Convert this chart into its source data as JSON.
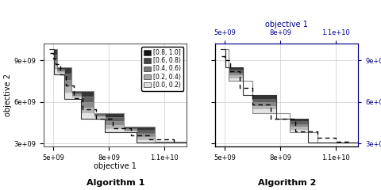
{
  "xlabel": "objective 1",
  "ylabel": "objective 2",
  "xlim": [
    4500000000.0,
    12200000000.0
  ],
  "ylim": [
    2800000000.0,
    10200000000.0
  ],
  "xticks": [
    5000000000.0,
    8000000000.0,
    11000000000.0
  ],
  "yticks": [
    3000000000.0,
    6000000000.0,
    9000000000.0
  ],
  "xtick_labels": [
    "5e+09",
    "8e+09",
    "1.1e+10"
  ],
  "ytick_labels": [
    "3e+09",
    "6e+09",
    "9e+09"
  ],
  "legend_labels": [
    "[0.8, 1.0]",
    "[0.6, 0.8)",
    "[0.4, 0.6)",
    "[0.2, 0.4)",
    "[0.0, 0.2)"
  ],
  "legend_colors": [
    "#111111",
    "#444444",
    "#777777",
    "#aaaaaa",
    "#e0e0e0"
  ],
  "alg1_label": "Algorithm 1",
  "alg2_label": "Algorithm 2",
  "axis_label_color": "#00008B",
  "background_color": "#ffffff",
  "grid_color": "#cccccc",
  "outer_line_color": "#888888",
  "inner_line_color": "#333333",
  "median_line_color": "#000000"
}
